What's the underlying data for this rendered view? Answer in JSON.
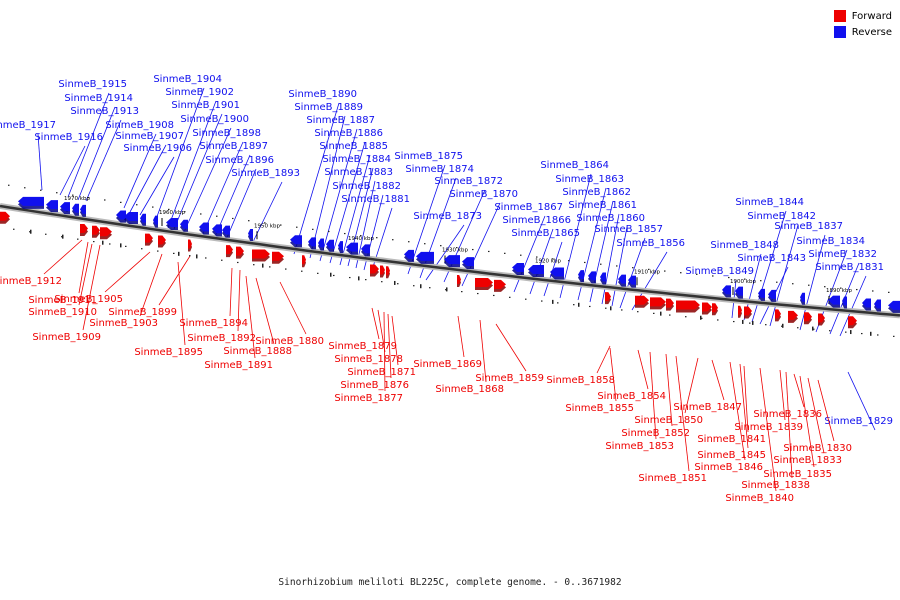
{
  "legend": {
    "forward": {
      "label": "Forward",
      "color": "#ee0000"
    },
    "reverse": {
      "label": "Reverse",
      "color": "#1010ee"
    }
  },
  "caption": "Sinorhizobium meliloti BL225C, complete genome. - 0..3671982",
  "ruler_ticks": [
    "1970 kbp",
    "1960 kbp",
    "1950 kbp",
    "1940 kbp",
    "1930 kbp",
    "1920 kbp",
    "1910 kbp",
    "1900 kbp",
    "1890 kbp"
  ],
  "reverse_genes": [
    "SinmeB_1917",
    "SinmeB_1916",
    "SinmeB_1915",
    "SinmeB_1914",
    "SinmeB_1913",
    "SinmeB_1908",
    "SinmeB_1907",
    "SinmeB_1906",
    "SinmeB_1904",
    "SinmeB_1902",
    "SinmeB_1901",
    "SinmeB_1900",
    "SinmeB_1898",
    "SinmeB_1897",
    "SinmeB_1896",
    "SinmeB_1893",
    "SinmeB_1890",
    "SinmeB_1889",
    "SinmeB_1887",
    "SinmeB_1886",
    "SinmeB_1885",
    "SinmeB_1884",
    "SinmeB_1883",
    "SinmeB_1882",
    "SinmeB_1881",
    "SinmeB_1875",
    "SinmeB_1874",
    "SinmeB_1873",
    "SinmeB_1872",
    "SinmeB_1870",
    "SinmeB_1867",
    "SinmeB_1866",
    "SinmeB_1865",
    "SinmeB_1864",
    "SinmeB_1863",
    "SinmeB_1862",
    "SinmeB_1861",
    "SinmeB_1860",
    "SinmeB_1857",
    "SinmeB_1856",
    "SinmeB_1849",
    "SinmeB_1848",
    "SinmeB_1844",
    "SinmeB_1843",
    "SinmeB_1842",
    "SinmeB_1837",
    "SinmeB_1834",
    "SinmeB_1832",
    "SinmeB_1831",
    "SinmeB_1829"
  ],
  "forward_genes": [
    "SinmeB_1912",
    "SinmeB_1911",
    "SinmeB_1910",
    "SinmeB_1909",
    "SinmeB_1905",
    "SinmeB_1903",
    "SinmeB_1899",
    "SinmeB_1895",
    "SinmeB_1894",
    "SinmeB_1892",
    "SinmeB_1891",
    "SinmeB_1888",
    "SinmeB_1880",
    "SinmeB_1879",
    "SinmeB_1878",
    "SinmeB_1877",
    "SinmeB_1876",
    "SinmeB_1871",
    "SinmeB_1869",
    "SinmeB_1868",
    "SinmeB_1859",
    "SinmeB_1858",
    "SinmeB_1855",
    "SinmeB_1854",
    "SinmeB_1853",
    "SinmeB_1852",
    "SinmeB_1851",
    "SinmeB_1850",
    "SinmeB_1847",
    "SinmeB_1846",
    "SinmeB_1845",
    "SinmeB_1841",
    "SinmeB_1840",
    "SinmeB_1839",
    "SinmeB_1838",
    "SinmeB_1836",
    "SinmeB_1835",
    "SinmeB_1833",
    "SinmeB_1830"
  ]
}
